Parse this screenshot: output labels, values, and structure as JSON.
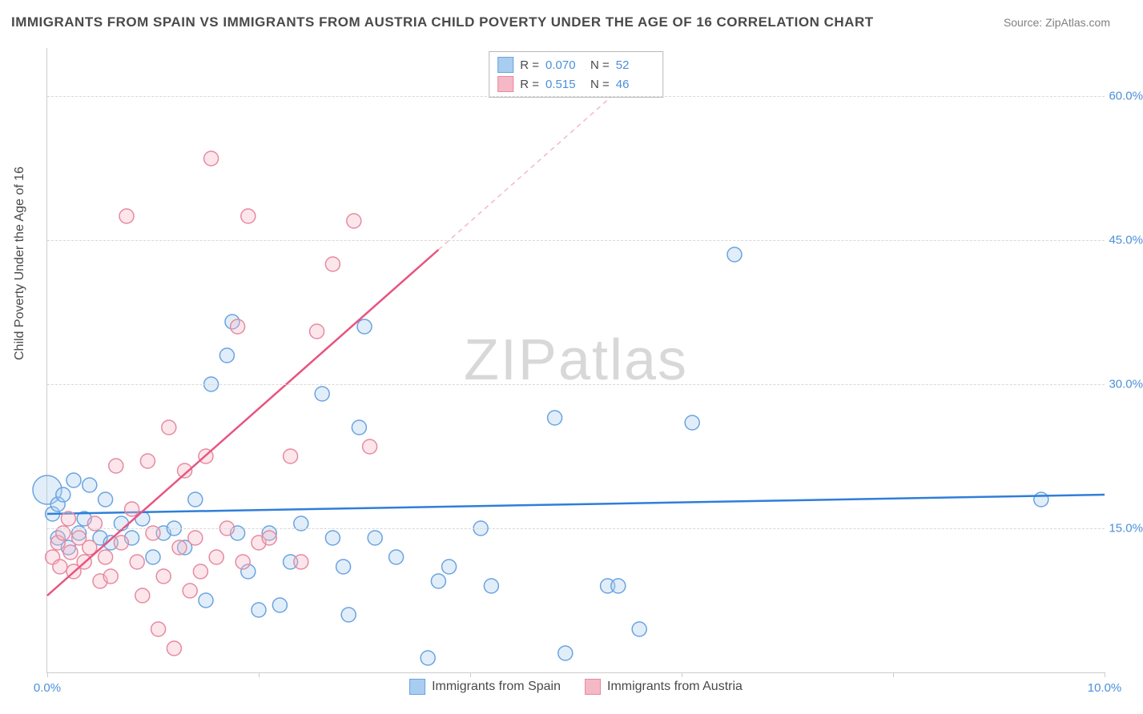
{
  "title": "IMMIGRANTS FROM SPAIN VS IMMIGRANTS FROM AUSTRIA CHILD POVERTY UNDER THE AGE OF 16 CORRELATION CHART",
  "source": "Source: ZipAtlas.com",
  "y_axis_label": "Child Poverty Under the Age of 16",
  "watermark": "ZIPatlas",
  "chart": {
    "type": "scatter",
    "xlim": [
      0,
      10
    ],
    "ylim": [
      0,
      65
    ],
    "x_ticks": [
      0,
      2,
      4,
      6,
      8,
      10
    ],
    "x_tick_labels": [
      "0.0%",
      "",
      "",
      "",
      "",
      "10.0%"
    ],
    "y_ticks": [
      15,
      30,
      45,
      60
    ],
    "y_tick_labels": [
      "15.0%",
      "30.0%",
      "45.0%",
      "60.0%"
    ],
    "grid_color": "#d8d8d8",
    "background_color": "#ffffff",
    "axis_color": "#cccccc",
    "tick_label_color": "#4a90d9",
    "tick_label_fontsize": 15,
    "title_color": "#4a4a4a",
    "title_fontsize": 17,
    "marker_radius": 9,
    "marker_stroke_width": 1.5,
    "marker_fill_opacity": 0.35,
    "series": [
      {
        "name": "Immigrants from Spain",
        "color_stroke": "#6aa3e0",
        "color_fill": "#a9cdf0",
        "R": "0.070",
        "N": "52",
        "trend": {
          "x1": 0,
          "y1": 16.5,
          "x2": 10,
          "y2": 18.5,
          "color": "#2f7ed8",
          "width": 2.5,
          "dash": "none"
        },
        "points": [
          [
            0.05,
            16.5
          ],
          [
            0.1,
            17.5
          ],
          [
            0.1,
            14.0
          ],
          [
            0.15,
            18.5
          ],
          [
            0.2,
            13.0
          ],
          [
            0.25,
            20.0
          ],
          [
            0.3,
            14.5
          ],
          [
            0.35,
            16.0
          ],
          [
            0.4,
            19.5
          ],
          [
            0.5,
            14.0
          ],
          [
            0.55,
            18.0
          ],
          [
            0.6,
            13.5
          ],
          [
            0.7,
            15.5
          ],
          [
            0.8,
            14.0
          ],
          [
            0.9,
            16.0
          ],
          [
            1.0,
            12.0
          ],
          [
            1.1,
            14.5
          ],
          [
            1.2,
            15.0
          ],
          [
            1.3,
            13.0
          ],
          [
            1.4,
            18.0
          ],
          [
            1.5,
            7.5
          ],
          [
            1.55,
            30.0
          ],
          [
            1.7,
            33.0
          ],
          [
            1.75,
            36.5
          ],
          [
            1.8,
            14.5
          ],
          [
            1.9,
            10.5
          ],
          [
            2.0,
            6.5
          ],
          [
            2.1,
            14.5
          ],
          [
            2.2,
            7.0
          ],
          [
            2.3,
            11.5
          ],
          [
            2.4,
            15.5
          ],
          [
            2.6,
            29.0
          ],
          [
            2.7,
            14.0
          ],
          [
            2.8,
            11.0
          ],
          [
            2.85,
            6.0
          ],
          [
            2.95,
            25.5
          ],
          [
            3.0,
            36.0
          ],
          [
            3.1,
            14.0
          ],
          [
            3.3,
            12.0
          ],
          [
            3.6,
            1.5
          ],
          [
            3.7,
            9.5
          ],
          [
            3.8,
            11.0
          ],
          [
            4.1,
            15.0
          ],
          [
            4.2,
            9.0
          ],
          [
            4.8,
            26.5
          ],
          [
            4.9,
            2.0
          ],
          [
            5.3,
            9.0
          ],
          [
            5.4,
            9.0
          ],
          [
            5.6,
            4.5
          ],
          [
            6.1,
            26.0
          ],
          [
            6.5,
            43.5
          ],
          [
            9.4,
            18.0
          ]
        ],
        "big_point": {
          "x": 0.0,
          "y": 19.0,
          "r": 18
        }
      },
      {
        "name": "Immigrants from Austria",
        "color_stroke": "#e68aa0",
        "color_fill": "#f5b8c6",
        "R": "0.515",
        "N": "46",
        "trend": {
          "x1": 0,
          "y1": 8.0,
          "x2": 3.7,
          "y2": 44.0,
          "color": "#e75480",
          "width": 2.5,
          "dash": "none"
        },
        "trend_ext": {
          "x1": 3.7,
          "y1": 44.0,
          "x2": 5.7,
          "y2": 63.5,
          "color": "#f5b8c6",
          "width": 1.5,
          "dash": "6,5"
        },
        "points": [
          [
            0.05,
            12.0
          ],
          [
            0.1,
            13.5
          ],
          [
            0.12,
            11.0
          ],
          [
            0.15,
            14.5
          ],
          [
            0.2,
            16.0
          ],
          [
            0.22,
            12.5
          ],
          [
            0.25,
            10.5
          ],
          [
            0.3,
            14.0
          ],
          [
            0.35,
            11.5
          ],
          [
            0.4,
            13.0
          ],
          [
            0.45,
            15.5
          ],
          [
            0.5,
            9.5
          ],
          [
            0.55,
            12.0
          ],
          [
            0.6,
            10.0
          ],
          [
            0.65,
            21.5
          ],
          [
            0.7,
            13.5
          ],
          [
            0.75,
            47.5
          ],
          [
            0.8,
            17.0
          ],
          [
            0.85,
            11.5
          ],
          [
            0.9,
            8.0
          ],
          [
            0.95,
            22.0
          ],
          [
            1.0,
            14.5
          ],
          [
            1.05,
            4.5
          ],
          [
            1.1,
            10.0
          ],
          [
            1.15,
            25.5
          ],
          [
            1.2,
            2.5
          ],
          [
            1.25,
            13.0
          ],
          [
            1.3,
            21.0
          ],
          [
            1.35,
            8.5
          ],
          [
            1.4,
            14.0
          ],
          [
            1.45,
            10.5
          ],
          [
            1.5,
            22.5
          ],
          [
            1.55,
            53.5
          ],
          [
            1.6,
            12.0
          ],
          [
            1.7,
            15.0
          ],
          [
            1.8,
            36.0
          ],
          [
            1.85,
            11.5
          ],
          [
            1.9,
            47.5
          ],
          [
            2.0,
            13.5
          ],
          [
            2.1,
            14.0
          ],
          [
            2.3,
            22.5
          ],
          [
            2.4,
            11.5
          ],
          [
            2.55,
            35.5
          ],
          [
            2.7,
            42.5
          ],
          [
            2.9,
            47.0
          ],
          [
            3.05,
            23.5
          ]
        ]
      }
    ]
  },
  "legend": {
    "R_label": "R =",
    "N_label": "N =",
    "bottom_items": [
      "Immigrants from Spain",
      "Immigrants from Austria"
    ]
  }
}
